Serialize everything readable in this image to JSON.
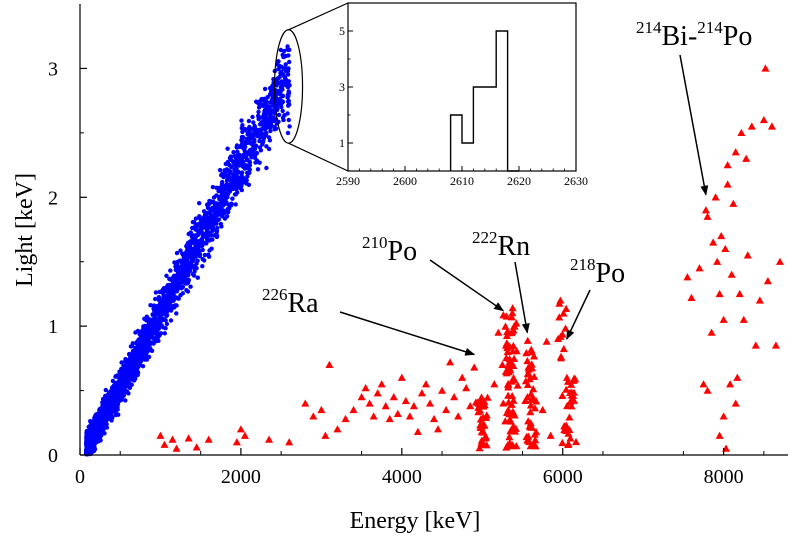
{
  "chart_data": {
    "type": "scatter",
    "title": "",
    "xlabel": "Energy   [keV]",
    "ylabel": "Light   [keV]",
    "xlim": [
      0,
      8800
    ],
    "ylim": [
      0,
      3.5
    ],
    "x_ticks": [
      "0",
      "2000",
      "4000",
      "6000",
      "8000"
    ],
    "y_ticks": [
      "0",
      "1",
      "2",
      "3"
    ],
    "grid": false,
    "colors": {
      "beta_gamma": "#0000ff",
      "alpha": "#ff0000",
      "axis": "#000000"
    },
    "marker_shapes": {
      "beta_gamma": "circle",
      "alpha": "triangle"
    },
    "blue_band": {
      "x_range": [
        80,
        2600
      ],
      "y_at_x_start": 0.05,
      "slope_per_keV": 0.00115
    },
    "highlight_points": [
      {
        "x": 2580,
        "y": 3.17
      },
      {
        "x": 2590,
        "y": 3.1
      },
      {
        "x": 2600,
        "y": 3.05
      },
      {
        "x": 2585,
        "y": 2.98
      },
      {
        "x": 2595,
        "y": 2.9
      },
      {
        "x": 2605,
        "y": 2.87
      },
      {
        "x": 2590,
        "y": 2.8
      },
      {
        "x": 2600,
        "y": 2.72
      },
      {
        "x": 2580,
        "y": 2.65
      },
      {
        "x": 2595,
        "y": 2.6
      },
      {
        "x": 2605,
        "y": 2.55
      },
      {
        "x": 2585,
        "y": 2.5
      }
    ],
    "alpha_clusters": [
      {
        "x_center": 5000,
        "x_spread": 70,
        "y_range": [
          0.05,
          0.45
        ],
        "n": 35
      },
      {
        "x_center": 5350,
        "x_spread": 80,
        "y_range": [
          0.05,
          1.15
        ],
        "n": 70
      },
      {
        "x_center": 5600,
        "x_spread": 80,
        "y_range": [
          0.05,
          0.9
        ],
        "n": 45
      },
      {
        "x_center": 6000,
        "x_spread": 60,
        "y_range": [
          0.7,
          1.2
        ],
        "n": 12
      },
      {
        "x_center": 6080,
        "x_spread": 80,
        "y_range": [
          0.05,
          0.6
        ],
        "n": 30
      }
    ],
    "alpha_scatter": [
      {
        "x": 1000,
        "y": 0.15
      },
      {
        "x": 1050,
        "y": 0.08
      },
      {
        "x": 1150,
        "y": 0.12
      },
      {
        "x": 1200,
        "y": 0.05
      },
      {
        "x": 1350,
        "y": 0.13
      },
      {
        "x": 1450,
        "y": 0.06
      },
      {
        "x": 1600,
        "y": 0.12
      },
      {
        "x": 1950,
        "y": 0.1
      },
      {
        "x": 2000,
        "y": 0.2
      },
      {
        "x": 2050,
        "y": 0.15
      },
      {
        "x": 2350,
        "y": 0.12
      },
      {
        "x": 2600,
        "y": 0.1
      },
      {
        "x": 2800,
        "y": 0.4
      },
      {
        "x": 2900,
        "y": 0.3
      },
      {
        "x": 3000,
        "y": 0.35
      },
      {
        "x": 3050,
        "y": 0.15
      },
      {
        "x": 3100,
        "y": 0.7
      },
      {
        "x": 3200,
        "y": 0.2
      },
      {
        "x": 3300,
        "y": 0.28
      },
      {
        "x": 3400,
        "y": 0.35
      },
      {
        "x": 3500,
        "y": 0.45
      },
      {
        "x": 3550,
        "y": 0.52
      },
      {
        "x": 3600,
        "y": 0.4
      },
      {
        "x": 3650,
        "y": 0.3
      },
      {
        "x": 3700,
        "y": 0.48
      },
      {
        "x": 3750,
        "y": 0.55
      },
      {
        "x": 3800,
        "y": 0.38
      },
      {
        "x": 3850,
        "y": 0.28
      },
      {
        "x": 3900,
        "y": 0.45
      },
      {
        "x": 3950,
        "y": 0.32
      },
      {
        "x": 4000,
        "y": 0.6
      },
      {
        "x": 4050,
        "y": 0.42
      },
      {
        "x": 4100,
        "y": 0.3
      },
      {
        "x": 4150,
        "y": 0.38
      },
      {
        "x": 4200,
        "y": 0.18
      },
      {
        "x": 4250,
        "y": 0.48
      },
      {
        "x": 4300,
        "y": 0.55
      },
      {
        "x": 4350,
        "y": 0.4
      },
      {
        "x": 4400,
        "y": 0.28
      },
      {
        "x": 4450,
        "y": 0.2
      },
      {
        "x": 4500,
        "y": 0.5
      },
      {
        "x": 4550,
        "y": 0.35
      },
      {
        "x": 4600,
        "y": 0.72
      },
      {
        "x": 4650,
        "y": 0.45
      },
      {
        "x": 4700,
        "y": 0.3
      },
      {
        "x": 4750,
        "y": 0.6
      },
      {
        "x": 4800,
        "y": 0.52
      },
      {
        "x": 4850,
        "y": 0.38
      },
      {
        "x": 4900,
        "y": 0.68
      },
      {
        "x": 5150,
        "y": 0.55
      },
      {
        "x": 5200,
        "y": 0.95
      },
      {
        "x": 5250,
        "y": 0.7
      },
      {
        "x": 5800,
        "y": 0.88
      },
      {
        "x": 5750,
        "y": 0.35
      },
      {
        "x": 5850,
        "y": 0.15
      },
      {
        "x": 7550,
        "y": 1.38
      },
      {
        "x": 7600,
        "y": 1.22
      },
      {
        "x": 7700,
        "y": 1.45
      },
      {
        "x": 7750,
        "y": 0.55
      },
      {
        "x": 7780,
        "y": 1.9
      },
      {
        "x": 7800,
        "y": 1.85
      },
      {
        "x": 7850,
        "y": 0.95
      },
      {
        "x": 7870,
        "y": 1.65
      },
      {
        "x": 7900,
        "y": 2.0
      },
      {
        "x": 7920,
        "y": 1.5
      },
      {
        "x": 7950,
        "y": 1.25
      },
      {
        "x": 7970,
        "y": 1.7
      },
      {
        "x": 8000,
        "y": 0.3
      },
      {
        "x": 8000,
        "y": 1.05
      },
      {
        "x": 8020,
        "y": 1.6
      },
      {
        "x": 8050,
        "y": 2.25
      },
      {
        "x": 8050,
        "y": 2.1
      },
      {
        "x": 8080,
        "y": 0.55
      },
      {
        "x": 8100,
        "y": 1.4
      },
      {
        "x": 8120,
        "y": 1.95
      },
      {
        "x": 8150,
        "y": 2.35
      },
      {
        "x": 8170,
        "y": 0.6
      },
      {
        "x": 8200,
        "y": 1.25
      },
      {
        "x": 8220,
        "y": 2.5
      },
      {
        "x": 8250,
        "y": 1.05
      },
      {
        "x": 8280,
        "y": 2.3
      },
      {
        "x": 8300,
        "y": 1.55
      },
      {
        "x": 8350,
        "y": 2.55
      },
      {
        "x": 8400,
        "y": 0.85
      },
      {
        "x": 8450,
        "y": 1.2
      },
      {
        "x": 8500,
        "y": 2.6
      },
      {
        "x": 8520,
        "y": 3.0
      },
      {
        "x": 8550,
        "y": 1.35
      },
      {
        "x": 8600,
        "y": 2.55
      },
      {
        "x": 8650,
        "y": 0.85
      },
      {
        "x": 8700,
        "y": 1.5
      },
      {
        "x": 7950,
        "y": 0.15
      },
      {
        "x": 8030,
        "y": 0.05
      },
      {
        "x": 7800,
        "y": 0.5
      },
      {
        "x": 8150,
        "y": 0.4
      }
    ],
    "annotations": [
      {
        "iso": "226",
        "name": "Ra",
        "arrow_to": {
          "x": 4900,
          "y": 0.78
        }
      },
      {
        "iso": "210",
        "name": "Po",
        "arrow_to": {
          "x": 5260,
          "y": 1.12
        }
      },
      {
        "iso": "222",
        "name": "Rn",
        "arrow_to": {
          "x": 5560,
          "y": 0.95
        }
      },
      {
        "iso": "218",
        "name": "Po",
        "arrow_to": {
          "x": 6050,
          "y": 0.9
        }
      },
      {
        "iso1": "214",
        "name1": "Bi-",
        "iso2": "214",
        "name2": "Po",
        "arrow_to": {
          "x": 7780,
          "y": 2.02
        }
      }
    ],
    "inset": {
      "type": "histogram",
      "xlim": [
        2590,
        2630
      ],
      "ylim": [
        0,
        6
      ],
      "x_ticks": [
        "2590",
        "2600",
        "2610",
        "2620",
        "2630"
      ],
      "y_ticks": [
        "1",
        "3",
        "5"
      ],
      "bin_edges": [
        2608,
        2610,
        2612,
        2614,
        2616,
        2618,
        2620
      ],
      "counts": [
        2,
        1,
        3,
        3,
        5,
        0
      ]
    }
  }
}
